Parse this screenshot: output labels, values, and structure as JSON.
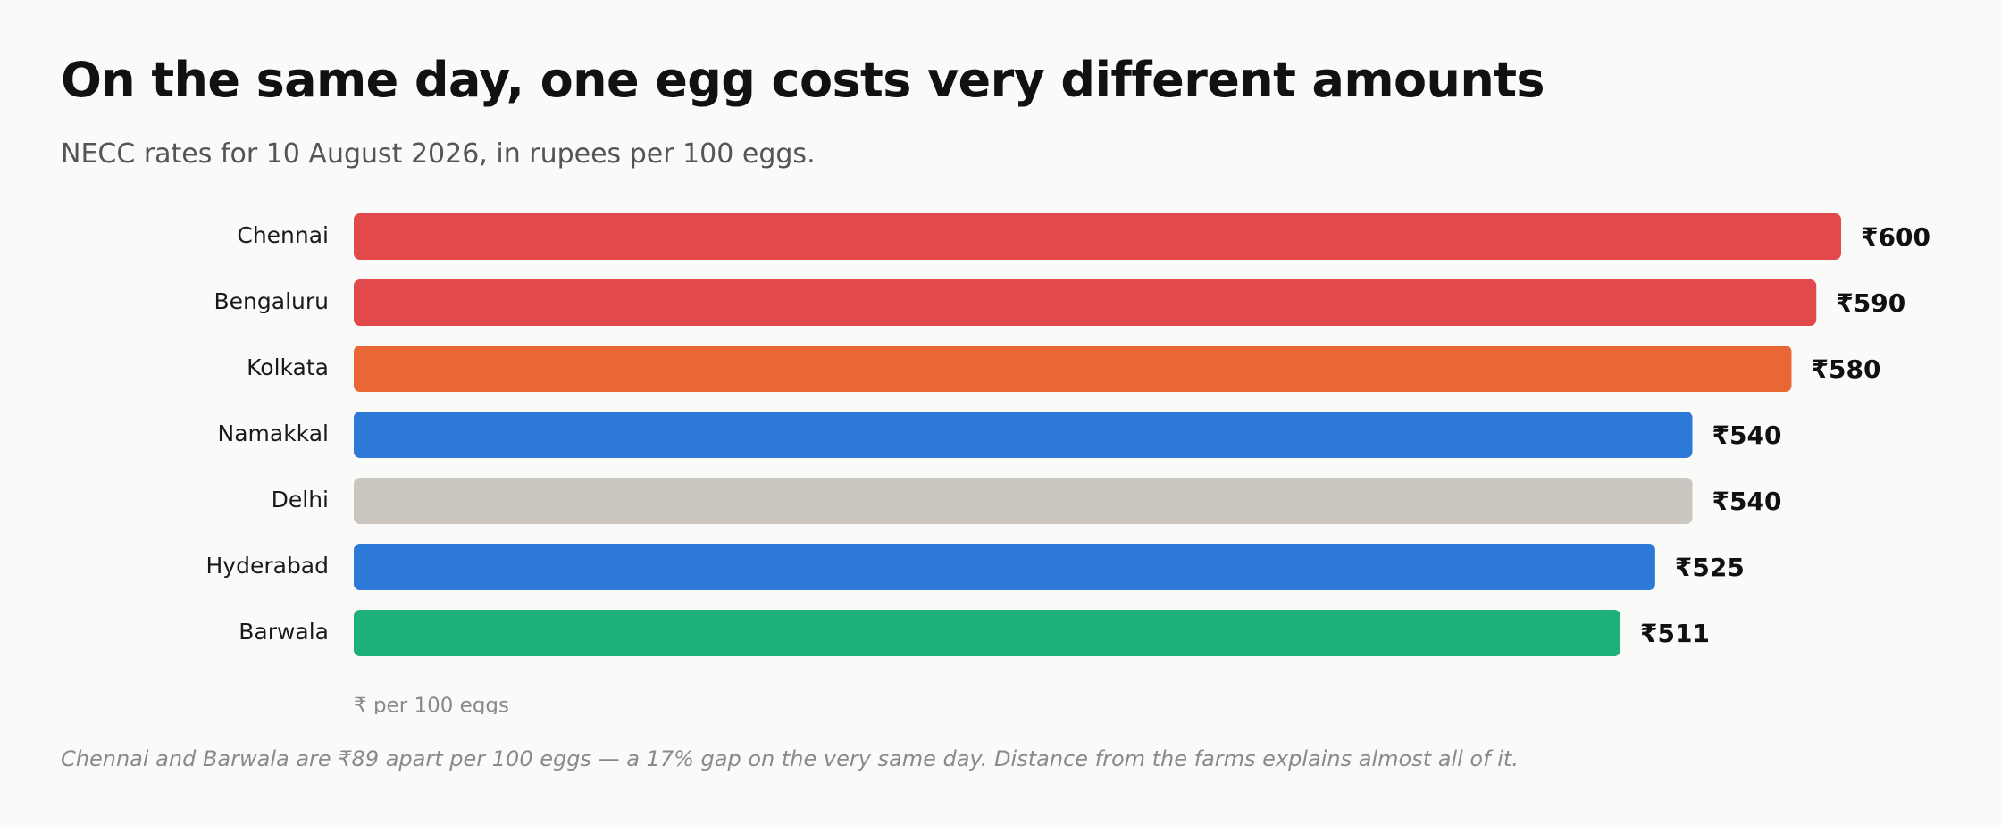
{
  "header": {
    "title": "On the same day, one egg costs very different amounts",
    "subtitle": "NECC rates for 10 August 2026, in rupees per 100 eggs."
  },
  "footnote": "Chennai and Barwala are ₹89 apart per 100 eggs — a 17% gap on the very same day. Distance from the farms explains almost all of it.",
  "chart_data": {
    "type": "bar",
    "orientation": "horizontal",
    "title": "On the same day, one egg costs very different amounts",
    "subtitle": "NECC rates for 10 August 2026, in rupees per 100 eggs.",
    "xlabel": "₹ per 100 eggs",
    "ylabel": "",
    "value_prefix": "₹",
    "grid": false,
    "categories": [
      "Chennai",
      "Bengaluru",
      "Kolkata",
      "Namakkal",
      "Delhi",
      "Hyderabad",
      "Barwala"
    ],
    "values": [
      600,
      590,
      580,
      540,
      540,
      525,
      511
    ],
    "value_labels": [
      "₹600",
      "₹590",
      "₹580",
      "₹540",
      "₹540",
      "₹525",
      "₹511"
    ],
    "colors": [
      "#e2494b",
      "#e2494b",
      "#e96735",
      "#2c79d8",
      "#cbc7c0",
      "#2c79d8",
      "#1db07a"
    ]
  }
}
